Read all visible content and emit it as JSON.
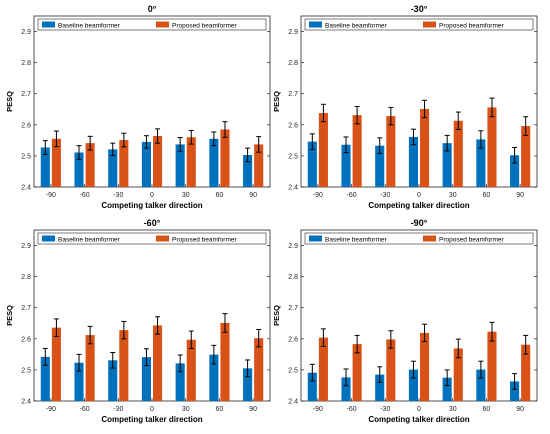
{
  "colors": {
    "baseline": "#0072BD",
    "proposed": "#D95319",
    "errorbar": "#000000",
    "grid": "#e6e6e6"
  },
  "chart_data": [
    {
      "type": "bar",
      "title": "0°",
      "xlabel": "Competing talker direction",
      "ylabel": "PESQ",
      "categories": [
        "-90",
        "-60",
        "-30",
        "0",
        "30",
        "60",
        "90"
      ],
      "ylim": [
        2.4,
        2.95
      ],
      "yticks": [
        "2.4",
        "2.5",
        "2.6",
        "2.7",
        "2.8",
        "2.9"
      ],
      "grid": false,
      "legend": "top",
      "series": [
        {
          "name": "Baseline beamformer",
          "values": [
            2.527,
            2.511,
            2.521,
            2.545,
            2.537,
            2.555,
            2.503
          ],
          "errors": [
            0.022,
            0.022,
            0.02,
            0.02,
            0.022,
            0.022,
            0.022
          ]
        },
        {
          "name": "Proposed beamformer",
          "values": [
            2.555,
            2.541,
            2.551,
            2.564,
            2.56,
            2.585,
            2.537
          ],
          "errors": [
            0.025,
            0.022,
            0.022,
            0.023,
            0.022,
            0.025,
            0.025
          ]
        }
      ]
    },
    {
      "type": "bar",
      "title": "-30°",
      "xlabel": "Competing talker direction",
      "ylabel": "PESQ",
      "categories": [
        "-90",
        "-60",
        "-30",
        "0",
        "30",
        "60",
        "90"
      ],
      "ylim": [
        2.4,
        2.95
      ],
      "yticks": [
        "2.4",
        "2.5",
        "2.6",
        "2.7",
        "2.8",
        "2.9"
      ],
      "grid": false,
      "legend": "top",
      "series": [
        {
          "name": "Baseline beamformer",
          "values": [
            2.546,
            2.536,
            2.533,
            2.561,
            2.541,
            2.553,
            2.502
          ],
          "errors": [
            0.025,
            0.025,
            0.025,
            0.025,
            0.025,
            0.028,
            0.025
          ]
        },
        {
          "name": "Proposed beamformer",
          "values": [
            2.638,
            2.631,
            2.628,
            2.651,
            2.613,
            2.656,
            2.596
          ],
          "errors": [
            0.028,
            0.028,
            0.028,
            0.028,
            0.028,
            0.03,
            0.03
          ]
        }
      ]
    },
    {
      "type": "bar",
      "title": "-60°",
      "xlabel": "Competing talker direction",
      "ylabel": "PESQ",
      "categories": [
        "-90",
        "-60",
        "-30",
        "0",
        "30",
        "60",
        "90"
      ],
      "ylim": [
        2.4,
        2.95
      ],
      "yticks": [
        "2.4",
        "2.5",
        "2.6",
        "2.7",
        "2.8",
        "2.9"
      ],
      "grid": false,
      "legend": "top",
      "series": [
        {
          "name": "Baseline beamformer",
          "values": [
            2.542,
            2.523,
            2.531,
            2.541,
            2.521,
            2.549,
            2.505
          ],
          "errors": [
            0.027,
            0.027,
            0.025,
            0.027,
            0.027,
            0.03,
            0.027
          ]
        },
        {
          "name": "Proposed beamformer",
          "values": [
            2.636,
            2.612,
            2.628,
            2.643,
            2.597,
            2.651,
            2.602
          ],
          "errors": [
            0.028,
            0.028,
            0.028,
            0.028,
            0.028,
            0.03,
            0.028
          ]
        }
      ]
    },
    {
      "type": "bar",
      "title": "-90°",
      "xlabel": "Competing talker direction",
      "ylabel": "PESQ",
      "categories": [
        "-90",
        "-60",
        "-30",
        "0",
        "30",
        "60",
        "90"
      ],
      "ylim": [
        2.4,
        2.95
      ],
      "yticks": [
        "2.4",
        "2.5",
        "2.6",
        "2.7",
        "2.8",
        "2.9"
      ],
      "grid": false,
      "legend": "top",
      "series": [
        {
          "name": "Baseline beamformer",
          "values": [
            2.491,
            2.476,
            2.485,
            2.501,
            2.475,
            2.501,
            2.463
          ],
          "errors": [
            0.027,
            0.027,
            0.025,
            0.027,
            0.025,
            0.027,
            0.025
          ]
        },
        {
          "name": "Proposed beamformer",
          "values": [
            2.604,
            2.583,
            2.598,
            2.619,
            2.569,
            2.623,
            2.581
          ],
          "errors": [
            0.028,
            0.028,
            0.028,
            0.028,
            0.03,
            0.03,
            0.03
          ]
        }
      ]
    }
  ]
}
